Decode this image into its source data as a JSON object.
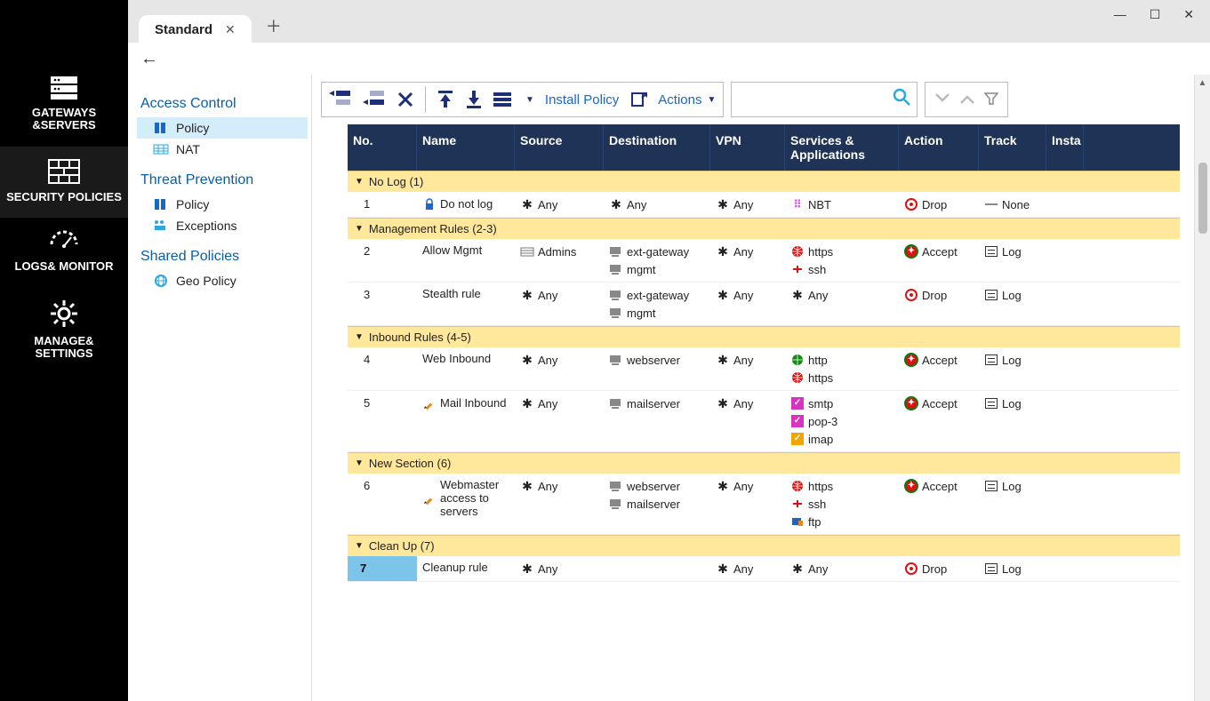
{
  "window": {
    "tab_title": "Standard"
  },
  "rail": [
    {
      "label": "GATEWAYS &SERVERS"
    },
    {
      "label": "SECURITY POLICIES"
    },
    {
      "label": "LOGS& MONITOR"
    },
    {
      "label": "MANAGE& SETTINGS"
    }
  ],
  "nav": {
    "groups": [
      {
        "title": "Access Control",
        "items": [
          {
            "label": "Policy",
            "icon": "policy",
            "selected": true
          },
          {
            "label": "NAT",
            "icon": "nat"
          }
        ]
      },
      {
        "title": "Threat Prevention",
        "items": [
          {
            "label": "Policy",
            "icon": "policy"
          },
          {
            "label": "Exceptions",
            "icon": "exceptions"
          }
        ]
      },
      {
        "title": "Shared Policies",
        "items": [
          {
            "label": "Geo Policy",
            "icon": "geo"
          }
        ]
      }
    ]
  },
  "toolbar": {
    "install_label": "Install Policy",
    "actions_label": "Actions"
  },
  "columns": [
    "No.",
    "Name",
    "Source",
    "Destination",
    "VPN",
    "Services & Applications",
    "Action",
    "Track",
    "Insta"
  ],
  "sections": [
    {
      "title": "No Log (1)",
      "rows": [
        {
          "no": "1",
          "name": "Do not log",
          "name_icon": "lock",
          "source": [
            {
              "t": "Any",
              "ic": "star"
            }
          ],
          "dest": [
            {
              "t": "Any",
              "ic": "star"
            }
          ],
          "vpn": [
            {
              "t": "Any",
              "ic": "star"
            }
          ],
          "svc": [
            {
              "t": "NBT",
              "ic": "nbt"
            }
          ],
          "action": {
            "t": "Drop",
            "ic": "drop"
          },
          "track": {
            "t": "None",
            "ic": "none"
          }
        }
      ]
    },
    {
      "title": "Management Rules (2-3)",
      "rows": [
        {
          "no": "2",
          "name": "Allow Mgmt",
          "source": [
            {
              "t": "Admins",
              "ic": "admins"
            }
          ],
          "dest": [
            {
              "t": "ext-gateway",
              "ic": "host"
            },
            {
              "t": "mgmt",
              "ic": "host"
            }
          ],
          "vpn": [
            {
              "t": "Any",
              "ic": "star"
            }
          ],
          "svc": [
            {
              "t": "https",
              "ic": "globe-red"
            },
            {
              "t": "ssh",
              "ic": "ssh"
            }
          ],
          "action": {
            "t": "Accept",
            "ic": "accept"
          },
          "track": {
            "t": "Log",
            "ic": "log"
          }
        },
        {
          "no": "3",
          "name": "Stealth rule",
          "source": [
            {
              "t": "Any",
              "ic": "star"
            }
          ],
          "dest": [
            {
              "t": "ext-gateway",
              "ic": "host"
            },
            {
              "t": "mgmt",
              "ic": "host"
            }
          ],
          "vpn": [
            {
              "t": "Any",
              "ic": "star"
            }
          ],
          "svc": [
            {
              "t": "Any",
              "ic": "star"
            }
          ],
          "action": {
            "t": "Drop",
            "ic": "drop"
          },
          "track": {
            "t": "Log",
            "ic": "log"
          }
        }
      ]
    },
    {
      "title": "Inbound Rules (4-5)",
      "rows": [
        {
          "no": "4",
          "name": "Web Inbound",
          "source": [
            {
              "t": "Any",
              "ic": "star"
            }
          ],
          "dest": [
            {
              "t": "webserver",
              "ic": "host"
            }
          ],
          "vpn": [
            {
              "t": "Any",
              "ic": "star"
            }
          ],
          "svc": [
            {
              "t": "http",
              "ic": "globe-green"
            },
            {
              "t": "https",
              "ic": "globe-red"
            }
          ],
          "action": {
            "t": "Accept",
            "ic": "accept"
          },
          "track": {
            "t": "Log",
            "ic": "log"
          }
        },
        {
          "no": "5",
          "name": "Mail Inbound",
          "name_icon": "pencil",
          "source": [
            {
              "t": "Any",
              "ic": "star"
            }
          ],
          "dest": [
            {
              "t": "mailserver",
              "ic": "host"
            }
          ],
          "vpn": [
            {
              "t": "Any",
              "ic": "star"
            }
          ],
          "svc": [
            {
              "t": "smtp",
              "ic": "sq-mag"
            },
            {
              "t": "pop-3",
              "ic": "sq-mag"
            },
            {
              "t": "imap",
              "ic": "sq-org"
            }
          ],
          "action": {
            "t": "Accept",
            "ic": "accept"
          },
          "track": {
            "t": "Log",
            "ic": "log"
          }
        }
      ]
    },
    {
      "title": "New Section (6)",
      "rows": [
        {
          "no": "6",
          "name": "Webmaster access to servers",
          "name_icon": "pencil",
          "source": [
            {
              "t": "Any",
              "ic": "star"
            }
          ],
          "dest": [
            {
              "t": "webserver",
              "ic": "host"
            },
            {
              "t": "mailserver",
              "ic": "host"
            }
          ],
          "vpn": [
            {
              "t": "Any",
              "ic": "star"
            }
          ],
          "svc": [
            {
              "t": "https",
              "ic": "globe-red"
            },
            {
              "t": "ssh",
              "ic": "ssh"
            },
            {
              "t": "ftp",
              "ic": "ftp"
            }
          ],
          "action": {
            "t": "Accept",
            "ic": "accept"
          },
          "track": {
            "t": "Log",
            "ic": "log"
          }
        }
      ]
    },
    {
      "title": "Clean Up (7)",
      "rows": [
        {
          "no": "7",
          "no_sel": true,
          "name": "Cleanup rule",
          "source": [
            {
              "t": "Any",
              "ic": "star"
            }
          ],
          "dest": [
            {
              "t": "",
              "ic": ""
            }
          ],
          "vpn": [
            {
              "t": "Any",
              "ic": "star"
            }
          ],
          "svc": [
            {
              "t": "Any",
              "ic": "star"
            }
          ],
          "action": {
            "t": "Drop",
            "ic": "drop"
          },
          "track": {
            "t": "Log",
            "ic": "log"
          }
        }
      ]
    }
  ],
  "colors": {
    "header_bg": "#1e3356",
    "section_bg": "#ffe79b",
    "selected_nav": "#d3edfa",
    "selected_row_no": "#7cc4ea",
    "link": "#1b66c9",
    "nav_title": "#0a5ea8"
  }
}
